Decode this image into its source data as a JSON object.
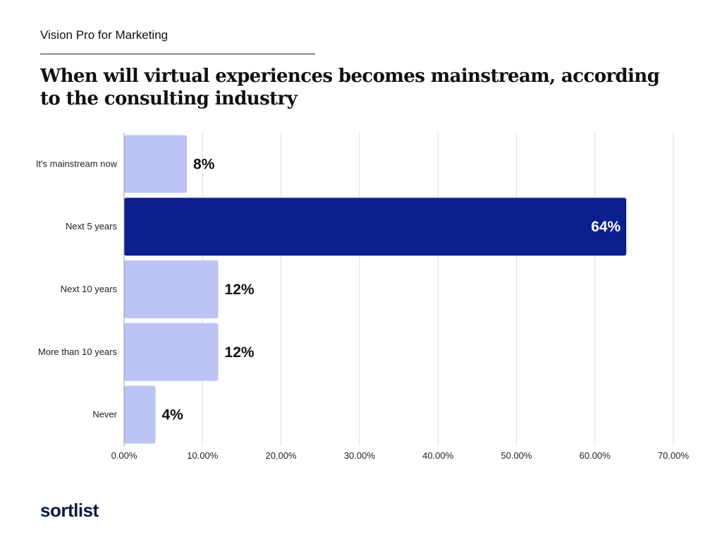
{
  "header": {
    "subtitle": "Vision Pro for Marketing",
    "title": "When will virtual experiences becomes mainstream, according to the consulting industry"
  },
  "footer": {
    "logo_text": "sortlist"
  },
  "colors": {
    "highlight": "#0b1f8f",
    "bar": "#bcc4f6",
    "grid": "#dddddd"
  },
  "chart_data": {
    "type": "bar",
    "orientation": "horizontal",
    "categories": [
      "It's mainstream now",
      "Next 5 years",
      "Next 10 years",
      "More than 10 years",
      "Never"
    ],
    "values": [
      8,
      64,
      12,
      12,
      4
    ],
    "data_labels": [
      "8%",
      "64%",
      "12%",
      "12%",
      "4%"
    ],
    "highlight_index": 1,
    "xlim": [
      0,
      70
    ],
    "xticks": [
      0,
      10,
      20,
      30,
      40,
      50,
      60,
      70
    ],
    "xtick_labels": [
      "0.00%",
      "10.00%",
      "20.00%",
      "30.00%",
      "40.00%",
      "50.00%",
      "60.00%",
      "70.00%"
    ],
    "grid": true,
    "legend": "none"
  }
}
